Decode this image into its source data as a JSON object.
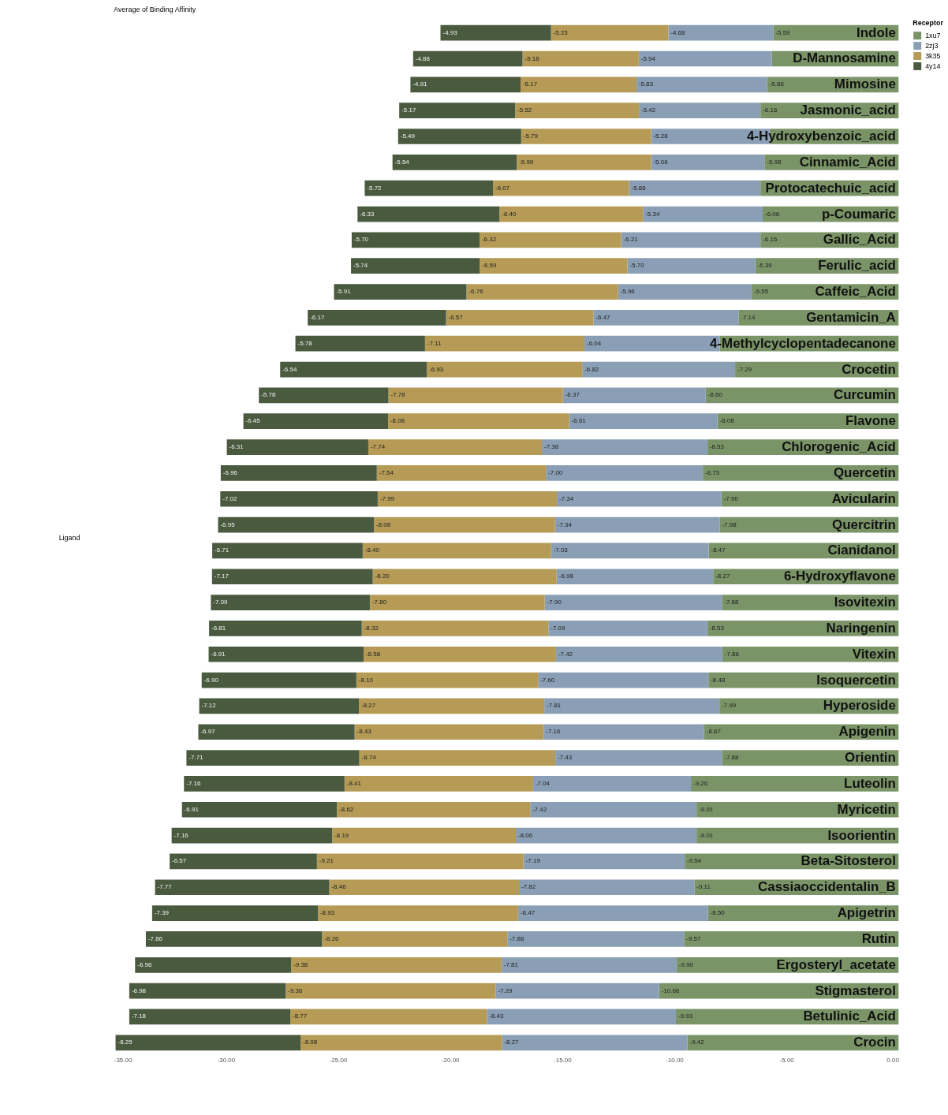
{
  "chart_data": {
    "type": "bar",
    "orientation": "horizontal",
    "stacked": true,
    "title": "Average of Binding Affinity",
    "ylabel": "Ligand",
    "legend_title": "Receptor",
    "legend": "right",
    "grid": false,
    "categories": [
      "Indole",
      "D-Mannosamine",
      "Mimosine",
      "Jasmonic_acid",
      "4-Hydroxybenzoic_acid",
      "Cinnamic_Acid",
      "Protocatechuic_acid",
      "p-Coumaric",
      "Gallic_Acid",
      "Ferulic_acid",
      "Caffeic_Acid",
      "Gentamicin_A",
      "4-Methylcyclopentadecanone",
      "Crocetin",
      "Curcumin",
      "Flavone",
      "Chlorogenic_Acid",
      "Quercetin",
      "Avicularin",
      "Quercitrin",
      "Cianidanol",
      "6-Hydroxyflavone",
      "Isovitexin",
      "Naringenin",
      "Vitexin",
      "Isoquercetin",
      "Hyperoside",
      "Apigenin",
      "Orientin",
      "Luteolin",
      "Myricetin",
      "Isoorientin",
      "Beta-Sitosterol",
      "Cassiaoccidentalin_B",
      "Apigetrin",
      "Rutin",
      "Ergosteryl_acetate",
      "Stigmasterol",
      "Betulinic_Acid",
      "Crocin"
    ],
    "xlim": [
      -35,
      0
    ],
    "xticks": [
      {
        "value": -35,
        "label": "-35.00"
      },
      {
        "value": -30,
        "label": "-30.00"
      },
      {
        "value": -25,
        "label": "-25.00"
      },
      {
        "value": -20,
        "label": "-20.00"
      },
      {
        "value": -15,
        "label": "-15.00"
      },
      {
        "value": -10,
        "label": "-10.00"
      },
      {
        "value": -5,
        "label": "-5.00"
      },
      {
        "value": 0,
        "label": "0.00"
      }
    ],
    "series": [
      {
        "name": "1xu7",
        "color": "#7a9467",
        "values": [
          -5.59,
          -5.65,
          -5.86,
          -6.16,
          -5.76,
          -5.98,
          -6.16,
          -6.06,
          -6.16,
          -6.39,
          -6.55,
          -7.14,
          -7.97,
          -7.29,
          -8.6,
          -8.08,
          -8.53,
          -8.73,
          -7.9,
          -7.98,
          -8.47,
          -8.27,
          -7.88,
          -8.53,
          -7.86,
          -8.48,
          -7.99,
          -8.67,
          -7.88,
          -9.26,
          -9.01,
          -9.01,
          -9.54,
          -9.11,
          -8.5,
          -9.57,
          -9.9,
          -10.68,
          -9.93,
          -9.42
        ],
        "value_labels": [
          "-5.59",
          null,
          "-5.86",
          "-6.16",
          null,
          "-5.98",
          null,
          "-6.06",
          "-6.16",
          "-6.39",
          "-6.55",
          "-7.14",
          null,
          "-7.29",
          "-8.60",
          "-8.08",
          "-8.53",
          "-8.73",
          "-7.90",
          "-7.98",
          "-8.47",
          "-8.27",
          "-7.88",
          "-8.53",
          "-7.86",
          "-8.48",
          "-7.99",
          "-8.67",
          "-7.88",
          "-9.26",
          "-9.01",
          "-9.01",
          "-9.54",
          "-9.11",
          "-8.50",
          "-9.57",
          "-9.90",
          "-10.68",
          "-9.93",
          "-9.42"
        ]
      },
      {
        "name": "2zj3",
        "color": "#8a9fb5",
        "values": [
          -4.68,
          -5.94,
          -5.83,
          -5.42,
          -5.28,
          -5.06,
          -5.86,
          -5.34,
          -6.21,
          -5.7,
          -5.96,
          -6.47,
          -6.04,
          -6.82,
          -6.37,
          -6.61,
          -7.38,
          -7.0,
          -7.34,
          -7.34,
          -7.03,
          -6.98,
          -7.9,
          -7.09,
          -7.42,
          -7.6,
          -7.81,
          -7.16,
          -7.43,
          -7.04,
          -7.42,
          -8.06,
          -7.19,
          -7.82,
          -8.47,
          -7.88,
          -7.81,
          -7.29,
          -8.43,
          -8.27
        ],
        "value_labels": [
          "-4.68",
          "-5.94",
          "-5.83",
          "-5.42",
          "-5.28",
          "-5.06",
          "-5.86",
          "-5.34",
          "-6.21",
          "-5.70",
          "-5.96",
          "-6.47",
          "-6.04",
          "-6.82",
          "-6.37",
          "-6.61",
          "-7.38",
          "-7.00",
          "-7.34",
          "-7.34",
          "-7.03",
          "-6.98",
          "-7.90",
          "-7.09",
          "-7.42",
          "-7.60",
          "-7.81",
          "-7.16",
          "-7.43",
          "-7.04",
          "-7.42",
          "-8.06",
          "-7.19",
          "-7.82",
          "-8.47",
          "-7.88",
          "-7.81",
          "-7.29",
          "-8.43",
          "-8.27"
        ]
      },
      {
        "name": "3k35",
        "color": "#b59b55",
        "values": [
          -5.23,
          -5.18,
          -5.17,
          -5.52,
          -5.79,
          -5.99,
          -6.07,
          -6.4,
          -6.32,
          -6.59,
          -6.76,
          -6.57,
          -7.11,
          -6.93,
          -7.78,
          -8.08,
          -7.74,
          -7.54,
          -7.99,
          -8.08,
          -8.4,
          -8.2,
          -7.8,
          -8.32,
          -8.58,
          -8.1,
          -8.27,
          -8.43,
          -8.74,
          -8.41,
          -8.62,
          -8.19,
          -9.21,
          -8.46,
          -8.93,
          -8.26,
          -9.38,
          -9.36,
          -8.77,
          -8.98
        ],
        "value_labels": [
          "-5.23",
          "-5.18",
          "-5.17",
          "-5.52",
          "-5.79",
          "-5.99",
          "-6.07",
          "-6.40",
          "-6.32",
          "-6.59",
          "-6.76",
          "-6.57",
          "-7.11",
          "-6.93",
          "-7.78",
          "-8.08",
          "-7.74",
          "-7.54",
          "-7.99",
          "-8.08",
          "-8.40",
          "-8.20",
          "-7.80",
          "-8.32",
          "-8.58",
          "-8.10",
          "-8.27",
          "-8.43",
          "-8.74",
          "-8.41",
          "-8.62",
          "-8.19",
          "-9.21",
          "-8.46",
          "-8.93",
          "-8.26",
          "-9.38",
          "-9.36",
          "-8.77",
          "-8.98"
        ]
      },
      {
        "name": "4y14",
        "color": "#4a5a3f",
        "values": [
          -4.93,
          -4.88,
          -4.91,
          -5.17,
          -5.49,
          -5.54,
          -5.72,
          -6.33,
          -5.7,
          -5.74,
          -5.91,
          -6.17,
          -5.78,
          -6.54,
          -5.78,
          -6.45,
          -6.31,
          -6.96,
          -7.02,
          -6.95,
          -6.71,
          -7.17,
          -7.09,
          -6.81,
          -6.91,
          -6.9,
          -7.12,
          -6.97,
          -7.71,
          -7.16,
          -6.91,
          -7.16,
          -6.57,
          -7.77,
          -7.39,
          -7.86,
          -6.96,
          -6.98,
          -7.18,
          -8.25
        ],
        "value_labels": [
          "-4.93",
          "-4.88",
          "-4.91",
          "-5.17",
          "-5.49",
          "-5.54",
          "-5.72",
          "-6.33",
          "-5.70",
          "-5.74",
          "-5.91",
          "-6.17",
          "-5.78",
          "-6.54",
          "-5.78",
          "-6.45",
          "-6.31",
          "-6.96",
          "-7.02",
          "-6.95",
          "-6.71",
          "-7.17",
          "-7.09",
          "-6.81",
          "-6.91",
          "-6.90",
          "-7.12",
          "-6.97",
          "-7.71",
          "-7.16",
          "-6.91",
          "-7.16",
          "-6.57",
          "-7.77",
          "-7.39",
          "-7.86",
          "-6.96",
          "-6.98",
          "-7.18",
          "-8.25"
        ]
      }
    ]
  }
}
